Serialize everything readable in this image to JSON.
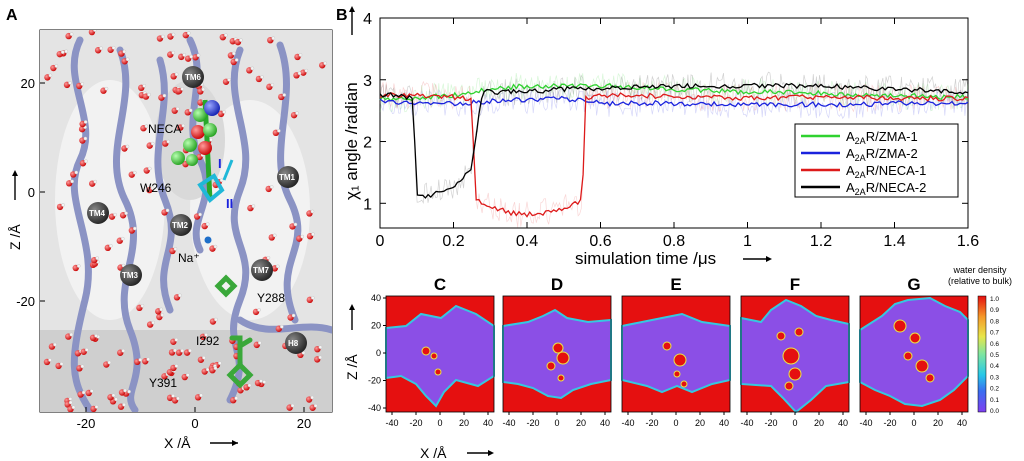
{
  "panels": {
    "A": {
      "letter": "A",
      "xlabel": "X /Å",
      "ylabel": "Z /Å",
      "x_ticks": [
        "-20",
        "0",
        "20"
      ],
      "y_ticks": [
        "20",
        "0",
        "-20"
      ],
      "labels": [
        "TM6",
        "NECA",
        "W246",
        "TM1",
        "TM4",
        "TM2",
        "Na⁺",
        "TM3",
        "TM7",
        "Y288",
        "I292",
        "H8",
        "Y391"
      ],
      "roman": [
        "I",
        "II"
      ]
    },
    "B": {
      "letter": "B"
    },
    "density": {
      "letters": [
        "C",
        "D",
        "E",
        "F",
        "G"
      ],
      "xlabel": "X /Å",
      "ylabel": "Z /Å",
      "x_ticks": [
        "-40",
        "-20",
        "0",
        "20",
        "40"
      ],
      "y_ticks": [
        "40",
        "20",
        "0",
        "-20",
        "-40"
      ],
      "colorbar_title": [
        "water density",
        "(relative to bulk)"
      ],
      "colorbar_ticks": [
        "1.0",
        "0.9",
        "0.8",
        "0.7",
        "0.6",
        "0.5",
        "0.4",
        "0.3",
        "0.2",
        "0.1",
        "0.0"
      ]
    }
  },
  "colors": {
    "ZMA1": "#2fd22f",
    "ZMA2": "#1a22dd",
    "NECA1": "#dd1a1a",
    "NECA2": "#000000",
    "helix": "#8b93c4",
    "water_red": "#e51010",
    "water_purple": "#8b4fe6"
  },
  "chart_data": {
    "type": "line",
    "title": "",
    "xlabel": "simulation time /μs",
    "ylabel": "χ₁ angle /radian",
    "xlim": [
      0,
      1.6
    ],
    "ylim": [
      0.6,
      4
    ],
    "x_ticks": [
      "0",
      "0.2",
      "0.4",
      "0.6",
      "0.8",
      "1",
      "1.2",
      "1.4",
      "1.6"
    ],
    "y_ticks": [
      "1",
      "2",
      "3",
      "4"
    ],
    "legend_position": "right",
    "series": [
      {
        "name": "A2AR/ZMA-1",
        "color": "#2fd22f",
        "x": [
          0,
          0.1,
          0.2,
          0.25,
          0.3,
          0.4,
          0.5,
          0.6,
          0.7,
          0.8,
          0.9,
          1.0,
          1.1,
          1.2,
          1.3,
          1.4,
          1.5,
          1.6
        ],
        "y": [
          2.7,
          2.7,
          2.75,
          2.8,
          2.85,
          2.9,
          2.9,
          2.9,
          2.88,
          2.85,
          2.82,
          2.8,
          2.8,
          2.78,
          2.75,
          2.75,
          2.72,
          2.72
        ]
      },
      {
        "name": "A2AR/ZMA-2",
        "color": "#1a22dd",
        "x": [
          0,
          0.1,
          0.2,
          0.3,
          0.4,
          0.5,
          0.6,
          0.7,
          0.8,
          0.9,
          1.0,
          1.1,
          1.2,
          1.3,
          1.4,
          1.5,
          1.6
        ],
        "y": [
          2.65,
          2.6,
          2.62,
          2.65,
          2.68,
          2.7,
          2.62,
          2.62,
          2.62,
          2.6,
          2.6,
          2.6,
          2.6,
          2.6,
          2.62,
          2.62,
          2.62
        ]
      },
      {
        "name": "A2AR/NECA-1",
        "color": "#dd1a1a",
        "x": [
          0,
          0.1,
          0.2,
          0.25,
          0.26,
          0.3,
          0.35,
          0.4,
          0.45,
          0.5,
          0.55,
          0.56,
          0.6,
          0.7,
          0.8,
          0.9,
          1.0,
          1.2,
          1.4,
          1.6
        ],
        "y": [
          2.75,
          2.75,
          2.72,
          2.7,
          1.05,
          0.95,
          0.85,
          0.82,
          0.85,
          0.92,
          1.05,
          2.7,
          2.75,
          2.75,
          2.72,
          2.72,
          2.7,
          2.72,
          2.7,
          2.7
        ]
      },
      {
        "name": "A2AR/NECA-2",
        "color": "#000000",
        "x": [
          0,
          0.05,
          0.09,
          0.1,
          0.15,
          0.2,
          0.22,
          0.25,
          0.27,
          0.28,
          0.3,
          0.4,
          0.5,
          0.6,
          0.8,
          1.0,
          1.2,
          1.4,
          1.6
        ],
        "y": [
          2.75,
          2.75,
          2.7,
          1.1,
          1.15,
          1.25,
          1.35,
          1.6,
          2.5,
          2.85,
          2.8,
          2.8,
          2.85,
          2.85,
          2.9,
          2.9,
          2.9,
          2.85,
          2.8
        ]
      }
    ]
  },
  "legend": [
    {
      "pre": "A",
      "sub": "2A",
      "post": "R/ZMA-1",
      "color": "#2fd22f"
    },
    {
      "pre": "A",
      "sub": "2A",
      "post": "R/ZMA-2",
      "color": "#1a22dd"
    },
    {
      "pre": "A",
      "sub": "2A",
      "post": "R/NECA-1",
      "color": "#dd1a1a"
    },
    {
      "pre": "A",
      "sub": "2A",
      "post": "R/NECA-2",
      "color": "#000000"
    }
  ]
}
